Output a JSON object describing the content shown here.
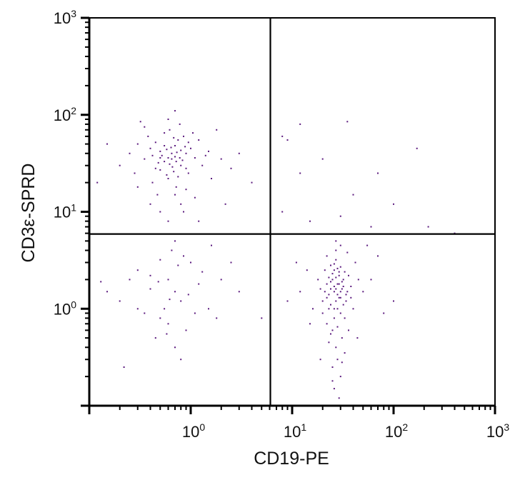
{
  "chart_data": {
    "type": "scatter",
    "title": "",
    "xlabel": "CD19-PE",
    "ylabel": "CD3ε-SPRD",
    "xscale": "log",
    "yscale": "log",
    "xlim": [
      0.1,
      1000
    ],
    "ylim": [
      0.1,
      1000
    ],
    "grid": false,
    "point_color": "#5b1a7e",
    "quadrant_gates": {
      "x": 6.1,
      "y": 5.9
    },
    "x_ticks": [
      {
        "base": "10",
        "exp": "0",
        "value": 1
      },
      {
        "base": "10",
        "exp": "1",
        "value": 10
      },
      {
        "base": "10",
        "exp": "2",
        "value": 100
      },
      {
        "base": "10",
        "exp": "3",
        "value": 1000
      }
    ],
    "y_ticks": [
      {
        "base": "10",
        "exp": "0",
        "value": 1
      },
      {
        "base": "10",
        "exp": "1",
        "value": 10
      },
      {
        "base": "10",
        "exp": "2",
        "value": 100
      },
      {
        "base": "10",
        "exp": "3",
        "value": 1000
      }
    ],
    "points": [
      [
        0.65,
        35
      ],
      [
        0.5,
        42
      ],
      [
        0.8,
        30
      ],
      [
        0.7,
        48
      ],
      [
        0.45,
        28
      ],
      [
        0.9,
        40
      ],
      [
        0.6,
        22
      ],
      [
        0.75,
        55
      ],
      [
        0.55,
        33
      ],
      [
        1.1,
        36
      ],
      [
        0.4,
        45
      ],
      [
        0.68,
        26
      ],
      [
        0.85,
        60
      ],
      [
        0.52,
        38
      ],
      [
        0.95,
        25
      ],
      [
        0.3,
        50
      ],
      [
        0.62,
        70
      ],
      [
        1.3,
        30
      ],
      [
        0.72,
        18
      ],
      [
        0.48,
        32
      ],
      [
        0.58,
        44
      ],
      [
        0.78,
        36
      ],
      [
        0.66,
        29
      ],
      [
        0.88,
        47
      ],
      [
        0.35,
        35
      ],
      [
        1.5,
        42
      ],
      [
        0.42,
        20
      ],
      [
        0.7,
        15
      ],
      [
        0.6,
        90
      ],
      [
        0.25,
        40
      ],
      [
        2.0,
        35
      ],
      [
        0.8,
        12
      ],
      [
        0.55,
        65
      ],
      [
        1.2,
        55
      ],
      [
        0.38,
        60
      ],
      [
        0.65,
        40
      ],
      [
        0.72,
        33
      ],
      [
        0.5,
        27
      ],
      [
        0.9,
        28
      ],
      [
        1.0,
        45
      ],
      [
        0.45,
        52
      ],
      [
        0.62,
        31
      ],
      [
        0.8,
        43
      ],
      [
        0.7,
        37
      ],
      [
        0.58,
        24
      ],
      [
        1.6,
        22
      ],
      [
        2.5,
        28
      ],
      [
        0.2,
        30
      ],
      [
        0.15,
        50
      ],
      [
        0.3,
        18
      ],
      [
        0.85,
        10
      ],
      [
        1.1,
        14
      ],
      [
        0.5,
        10
      ],
      [
        0.6,
        8
      ],
      [
        3.0,
        40
      ],
      [
        0.7,
        110
      ],
      [
        0.32,
        85
      ],
      [
        1.8,
        70
      ],
      [
        0.28,
        25
      ],
      [
        0.75,
        23
      ],
      [
        0.95,
        52
      ],
      [
        0.55,
        48
      ],
      [
        0.68,
        58
      ],
      [
        1.4,
        38
      ],
      [
        0.42,
        38
      ],
      [
        0.6,
        36
      ],
      [
        0.73,
        41
      ],
      [
        0.83,
        34
      ],
      [
        0.5,
        36
      ],
      [
        0.64,
        46
      ],
      [
        0.12,
        20
      ],
      [
        4.0,
        20
      ],
      [
        1.2,
        8
      ],
      [
        2.2,
        12
      ],
      [
        0.4,
        12
      ],
      [
        0.9,
        17
      ],
      [
        0.35,
        75
      ],
      [
        0.78,
        80
      ],
      [
        1.05,
        65
      ],
      [
        0.47,
        15
      ],
      [
        0.6,
        2.0
      ],
      [
        0.8,
        1.2
      ],
      [
        0.4,
        1.6
      ],
      [
        1.0,
        3.0
      ],
      [
        0.5,
        0.8
      ],
      [
        0.7,
        1.5
      ],
      [
        0.3,
        2.5
      ],
      [
        1.5,
        1.0
      ],
      [
        0.9,
        0.6
      ],
      [
        0.65,
        4.0
      ],
      [
        0.2,
        1.2
      ],
      [
        0.45,
        0.5
      ],
      [
        2.0,
        2.0
      ],
      [
        0.75,
        2.8
      ],
      [
        0.55,
        1.0
      ],
      [
        1.2,
        1.8
      ],
      [
        0.35,
        0.9
      ],
      [
        0.85,
        3.5
      ],
      [
        0.25,
        2.0
      ],
      [
        0.6,
        0.7
      ],
      [
        1.8,
        0.8
      ],
      [
        0.15,
        1.5
      ],
      [
        0.7,
        0.4
      ],
      [
        3.0,
        1.5
      ],
      [
        0.5,
        3.2
      ],
      [
        1.1,
        0.9
      ],
      [
        0.4,
        2.2
      ],
      [
        0.95,
        1.4
      ],
      [
        0.3,
        1.0
      ],
      [
        5.0,
        0.8
      ],
      [
        0.8,
        0.3
      ],
      [
        0.22,
        0.25
      ],
      [
        0.62,
        1.25
      ],
      [
        1.3,
        2.4
      ],
      [
        0.48,
        1.9
      ],
      [
        0.13,
        1.9
      ],
      [
        0.7,
        5.0
      ],
      [
        2.5,
        3.0
      ],
      [
        0.58,
        0.55
      ],
      [
        1.6,
        4.5
      ],
      [
        27,
        1.6
      ],
      [
        25,
        2.0
      ],
      [
        30,
        1.3
      ],
      [
        22,
        1.8
      ],
      [
        33,
        2.4
      ],
      [
        28,
        1.0
      ],
      [
        24,
        2.8
      ],
      [
        35,
        1.5
      ],
      [
        20,
        1.2
      ],
      [
        29,
        2.2
      ],
      [
        26,
        0.8
      ],
      [
        31,
        1.9
      ],
      [
        23,
        1.4
      ],
      [
        38,
        1.7
      ],
      [
        27,
        3.2
      ],
      [
        21,
        2.5
      ],
      [
        32,
        1.1
      ],
      [
        25,
        0.6
      ],
      [
        30,
        0.9
      ],
      [
        28,
        2.6
      ],
      [
        34,
        1.2
      ],
      [
        19,
        1.6
      ],
      [
        26,
        1.5
      ],
      [
        29,
        1.8
      ],
      [
        24,
        1.1
      ],
      [
        36,
        2.2
      ],
      [
        22,
        0.7
      ],
      [
        31,
        0.5
      ],
      [
        27,
        0.4
      ],
      [
        28,
        0.3
      ],
      [
        25,
        0.25
      ],
      [
        30,
        0.2
      ],
      [
        26,
        0.15
      ],
      [
        29,
        0.12
      ],
      [
        33,
        0.35
      ],
      [
        23,
        0.45
      ],
      [
        40,
        1.0
      ],
      [
        45,
        2.0
      ],
      [
        18,
        2.0
      ],
      [
        16,
        1.0
      ],
      [
        50,
        1.5
      ],
      [
        14,
        2.5
      ],
      [
        42,
        3.0
      ],
      [
        27,
        4.0
      ],
      [
        30,
        4.5
      ],
      [
        22,
        3.5
      ],
      [
        35,
        3.8
      ],
      [
        60,
        2.0
      ],
      [
        12,
        1.5
      ],
      [
        70,
        3.5
      ],
      [
        26,
        1.7
      ],
      [
        28,
        1.4
      ],
      [
        24,
        1.9
      ],
      [
        31,
        1.6
      ],
      [
        29,
        1.3
      ],
      [
        25,
        2.3
      ],
      [
        32,
        2.0
      ],
      [
        27,
        1.2
      ],
      [
        23,
        2.1
      ],
      [
        30,
        2.7
      ],
      [
        34,
        1.4
      ],
      [
        21,
        1.5
      ],
      [
        26,
        1.0
      ],
      [
        28,
        0.65
      ],
      [
        24,
        0.55
      ],
      [
        33,
        0.8
      ],
      [
        20,
        0.9
      ],
      [
        38,
        1.3
      ],
      [
        26,
        2.9
      ],
      [
        29,
        2.4
      ],
      [
        9,
        1.2
      ],
      [
        100,
        1.2
      ],
      [
        80,
        0.9
      ],
      [
        11,
        3.0
      ],
      [
        55,
        4.5
      ],
      [
        19,
        0.3
      ],
      [
        36,
        0.6
      ],
      [
        27,
        5.0
      ],
      [
        25,
        0.18
      ],
      [
        31,
        0.28
      ],
      [
        15,
        0.7
      ],
      [
        44,
        0.5
      ],
      [
        24,
        1.6
      ],
      [
        28,
        1.8
      ],
      [
        27,
        2.1
      ],
      [
        30,
        1.5
      ],
      [
        22,
        1.3
      ],
      [
        26,
        2.5
      ],
      [
        32,
        1.7
      ],
      [
        23,
        1.0
      ],
      [
        8,
        60
      ],
      [
        12,
        80
      ],
      [
        35,
        85
      ],
      [
        170,
        45
      ],
      [
        12,
        25
      ],
      [
        70,
        25
      ],
      [
        20,
        35
      ],
      [
        100,
        12
      ],
      [
        40,
        15
      ],
      [
        8,
        10
      ],
      [
        220,
        7
      ],
      [
        400,
        6
      ],
      [
        15,
        8
      ],
      [
        60,
        7
      ],
      [
        30,
        9
      ],
      [
        9,
        55
      ]
    ]
  }
}
